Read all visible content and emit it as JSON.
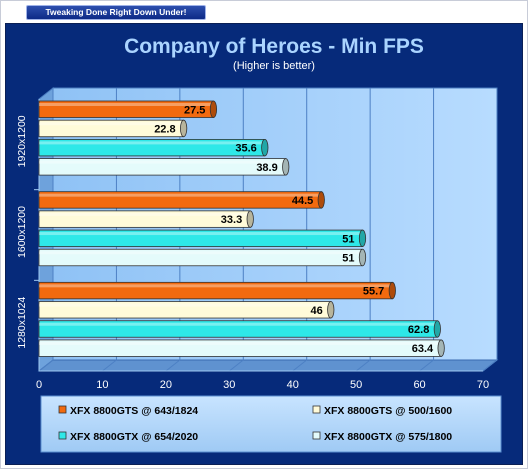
{
  "banner": "Tweaking Done Right Down Under!",
  "chart_data": {
    "type": "bar",
    "orientation": "horizontal",
    "title": "Company of Heroes - Min FPS",
    "subtitle": "(Higher is better)",
    "categories": [
      "1920x1200",
      "1600x1200",
      "1280x1024"
    ],
    "xlim": [
      0,
      70
    ],
    "xticks": [
      0,
      10,
      20,
      30,
      40,
      50,
      60,
      70
    ],
    "grid": true,
    "legend_position": "bottom",
    "series": [
      {
        "name": "XFX 8800GTS @ 643/1824",
        "color": "#f26a0f",
        "values": [
          27.5,
          44.5,
          55.7
        ],
        "labels": [
          "27.5",
          "44.5",
          "55.7"
        ]
      },
      {
        "name": "XFX 8800GTS @ 500/1600",
        "color": "#fffbd9",
        "values": [
          22.8,
          33.3,
          46
        ],
        "labels": [
          "22.8",
          "33.3",
          "46"
        ]
      },
      {
        "name": "XFX 8800GTX @ 654/2020",
        "color": "#2ee8e8",
        "values": [
          35.6,
          51,
          62.8
        ],
        "labels": [
          "35.6",
          "51",
          "62.8"
        ]
      },
      {
        "name": "XFX 8800GTX @ 575/1800",
        "color": "#e4fbfb",
        "values": [
          38.9,
          51,
          63.4
        ],
        "labels": [
          "38.9",
          "51",
          "63.4"
        ]
      }
    ]
  }
}
